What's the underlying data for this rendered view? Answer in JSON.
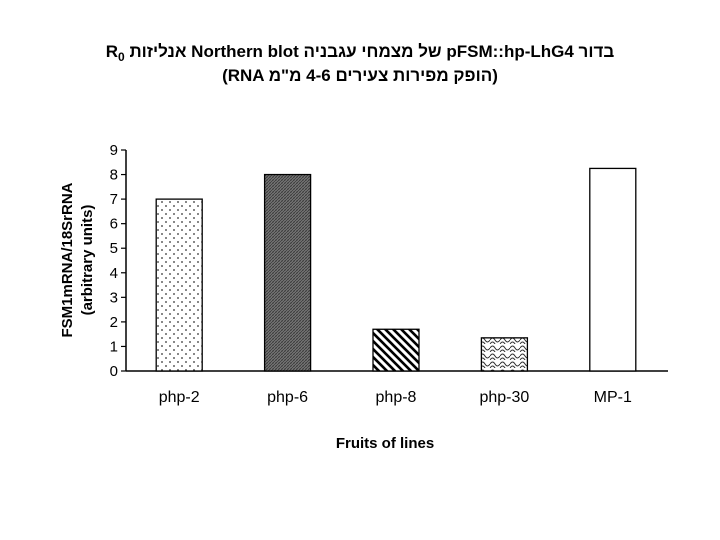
{
  "chart_data": {
    "type": "bar",
    "title": "אנליזות Northern blot של מצמחי עגבניה pFSM::hp-LhG4 בדור",
    "title_subscript_prefix": "R",
    "title_subscript": "0",
    "subtitle": "(RNA הופק מפירות צעירים 4-6 מ\"מ)",
    "xlabel": "Fruits of lines",
    "ylabel_line1": "FSM1mRNA/18SrRNA",
    "ylabel_line2": "(arbitrary units)",
    "ylim": [
      0,
      9
    ],
    "yticks": [
      "0",
      "1",
      "2",
      "3",
      "4",
      "5",
      "6",
      "7",
      "8",
      "9"
    ],
    "categories": [
      "php-2",
      "php-6",
      "php-8",
      "php-30",
      "MP-1"
    ],
    "values": [
      7.0,
      8.0,
      1.7,
      1.35,
      8.25
    ],
    "patterns": [
      "dots",
      "dense-crosshatch",
      "diagonal-stripes",
      "waves",
      "none"
    ],
    "grid": false
  }
}
